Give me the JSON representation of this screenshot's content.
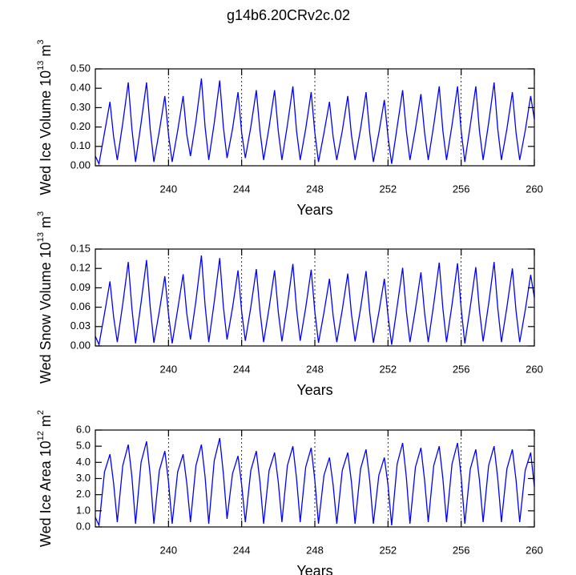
{
  "title": "g14b6.20CRv2c.02",
  "chart_data": [
    {
      "type": "line",
      "xlabel": "Years",
      "ylabel": {
        "text": "Wed Ice Volume 10",
        "exp": "13",
        "unit": "m",
        "unit_exp": "3"
      },
      "xlim": [
        236,
        260
      ],
      "xticks": [
        240,
        244,
        248,
        252,
        256,
        260
      ],
      "ylim": [
        0,
        0.5
      ],
      "yticks": [
        {
          "value": 0,
          "label": "0.00"
        },
        {
          "value": 0.1,
          "label": "0.10"
        },
        {
          "value": 0.2,
          "label": "0.20"
        },
        {
          "value": 0.3,
          "label": "0.30"
        },
        {
          "value": 0.4,
          "label": "0.40"
        },
        {
          "value": 0.5,
          "label": "0.50"
        }
      ],
      "xgrid": "dashed",
      "x": [
        236,
        236.2,
        236.5,
        236.8,
        237,
        237.2,
        237.5,
        237.8,
        238,
        238.2,
        238.5,
        238.8,
        239,
        239.2,
        239.5,
        239.8,
        240,
        240.2,
        240.5,
        240.8,
        241,
        241.2,
        241.5,
        241.8,
        242,
        242.2,
        242.5,
        242.8,
        243,
        243.2,
        243.5,
        243.8,
        244,
        244.2,
        244.5,
        244.8,
        245,
        245.2,
        245.5,
        245.8,
        246,
        246.2,
        246.5,
        246.8,
        247,
        247.2,
        247.5,
        247.8,
        248,
        248.2,
        248.5,
        248.8,
        249,
        249.2,
        249.5,
        249.8,
        250,
        250.2,
        250.5,
        250.8,
        251,
        251.2,
        251.5,
        251.8,
        252,
        252.2,
        252.5,
        252.8,
        253,
        253.2,
        253.5,
        253.8,
        254,
        254.2,
        254.5,
        254.8,
        255,
        255.2,
        255.5,
        255.8,
        256,
        256.2,
        256.5,
        256.8,
        257,
        257.2,
        257.5,
        257.8,
        258,
        258.2,
        258.5,
        258.8,
        259,
        259.2,
        259.5,
        259.8,
        260
      ],
      "series": [
        {
          "color": "#0000ff",
          "values": [
            0.05,
            0.01,
            0.17,
            0.33,
            0.15,
            0.03,
            0.22,
            0.43,
            0.19,
            0.02,
            0.22,
            0.43,
            0.19,
            0.02,
            0.18,
            0.36,
            0.16,
            0.02,
            0.18,
            0.36,
            0.16,
            0.05,
            0.23,
            0.45,
            0.2,
            0.03,
            0.22,
            0.44,
            0.2,
            0.04,
            0.19,
            0.38,
            0.17,
            0.04,
            0.2,
            0.39,
            0.18,
            0.03,
            0.2,
            0.39,
            0.18,
            0.03,
            0.21,
            0.41,
            0.18,
            0.03,
            0.19,
            0.38,
            0.17,
            0.02,
            0.17,
            0.33,
            0.15,
            0.03,
            0.18,
            0.36,
            0.16,
            0.03,
            0.19,
            0.38,
            0.17,
            0.02,
            0.17,
            0.34,
            0.15,
            0.01,
            0.2,
            0.39,
            0.18,
            0.03,
            0.19,
            0.37,
            0.17,
            0.03,
            0.21,
            0.41,
            0.18,
            0.03,
            0.21,
            0.41,
            0.18,
            0.02,
            0.21,
            0.41,
            0.18,
            0.03,
            0.22,
            0.43,
            0.19,
            0.03,
            0.19,
            0.38,
            0.17,
            0.03,
            0.18,
            0.36,
            0.24
          ]
        }
      ]
    },
    {
      "type": "line",
      "xlabel": "Years",
      "ylabel": {
        "text": "Wed Snow Volume 10",
        "exp": "13",
        "unit": "m",
        "unit_exp": "3"
      },
      "xlim": [
        236,
        260
      ],
      "xticks": [
        240,
        244,
        248,
        252,
        256,
        260
      ],
      "ylim": [
        0,
        0.15
      ],
      "yticks": [
        {
          "value": 0,
          "label": "0.00"
        },
        {
          "value": 0.03,
          "label": "0.03"
        },
        {
          "value": 0.06,
          "label": "0.06"
        },
        {
          "value": 0.09,
          "label": "0.09"
        },
        {
          "value": 0.12,
          "label": "0.12"
        },
        {
          "value": 0.15,
          "label": "0.15"
        }
      ],
      "xgrid": "dashed",
      "x": [
        236,
        236.2,
        236.5,
        236.8,
        237,
        237.2,
        237.5,
        237.8,
        238,
        238.2,
        238.5,
        238.8,
        239,
        239.2,
        239.5,
        239.8,
        240,
        240.2,
        240.5,
        240.8,
        241,
        241.2,
        241.5,
        241.8,
        242,
        242.2,
        242.5,
        242.8,
        243,
        243.2,
        243.5,
        243.8,
        244,
        244.2,
        244.5,
        244.8,
        245,
        245.2,
        245.5,
        245.8,
        246,
        246.2,
        246.5,
        246.8,
        247,
        247.2,
        247.5,
        247.8,
        248,
        248.2,
        248.5,
        248.8,
        249,
        249.2,
        249.5,
        249.8,
        250,
        250.2,
        250.5,
        250.8,
        251,
        251.2,
        251.5,
        251.8,
        252,
        252.2,
        252.5,
        252.8,
        253,
        253.2,
        253.5,
        253.8,
        254,
        254.2,
        254.5,
        254.8,
        255,
        255.2,
        255.5,
        255.8,
        256,
        256.2,
        256.5,
        256.8,
        257,
        257.2,
        257.5,
        257.8,
        258,
        258.2,
        258.5,
        258.8,
        259,
        259.2,
        259.5,
        259.8,
        260
      ],
      "series": [
        {
          "color": "#0000ff",
          "values": [
            0.015,
            0.002,
            0.05,
            0.1,
            0.045,
            0.006,
            0.065,
            0.13,
            0.058,
            0.004,
            0.067,
            0.133,
            0.06,
            0.005,
            0.054,
            0.108,
            0.049,
            0.004,
            0.056,
            0.111,
            0.05,
            0.01,
            0.07,
            0.14,
            0.063,
            0.006,
            0.068,
            0.136,
            0.061,
            0.01,
            0.059,
            0.117,
            0.053,
            0.008,
            0.06,
            0.119,
            0.054,
            0.006,
            0.059,
            0.117,
            0.053,
            0.007,
            0.064,
            0.127,
            0.057,
            0.008,
            0.059,
            0.118,
            0.053,
            0.005,
            0.052,
            0.104,
            0.047,
            0.006,
            0.056,
            0.112,
            0.05,
            0.007,
            0.058,
            0.116,
            0.052,
            0.005,
            0.052,
            0.104,
            0.047,
            0.002,
            0.061,
            0.121,
            0.054,
            0.006,
            0.057,
            0.114,
            0.051,
            0.006,
            0.065,
            0.129,
            0.058,
            0.006,
            0.064,
            0.128,
            0.058,
            0.004,
            0.061,
            0.122,
            0.055,
            0.007,
            0.065,
            0.13,
            0.059,
            0.006,
            0.06,
            0.12,
            0.054,
            0.006,
            0.055,
            0.11,
            0.075
          ]
        }
      ]
    },
    {
      "type": "line",
      "xlabel": "Years",
      "ylabel": {
        "text": "Wed Ice Area 10",
        "exp": "12",
        "unit": "m",
        "unit_exp": "2"
      },
      "xlim": [
        236,
        260
      ],
      "xticks": [
        240,
        244,
        248,
        252,
        256,
        260
      ],
      "ylim": [
        0,
        6
      ],
      "yticks": [
        {
          "value": 0,
          "label": "0.0"
        },
        {
          "value": 1,
          "label": "1.0"
        },
        {
          "value": 2,
          "label": "2.0"
        },
        {
          "value": 3,
          "label": "3.0"
        },
        {
          "value": 4,
          "label": "4.0"
        },
        {
          "value": 5,
          "label": "5.0"
        },
        {
          "value": 6,
          "label": "6.0"
        }
      ],
      "xgrid": "dashed",
      "x": [
        236,
        236.2,
        236.5,
        236.8,
        237,
        237.2,
        237.5,
        237.8,
        238,
        238.2,
        238.5,
        238.8,
        239,
        239.2,
        239.5,
        239.8,
        240,
        240.2,
        240.5,
        240.8,
        241,
        241.2,
        241.5,
        241.8,
        242,
        242.2,
        242.5,
        242.8,
        243,
        243.2,
        243.5,
        243.8,
        244,
        244.2,
        244.5,
        244.8,
        245,
        245.2,
        245.5,
        245.8,
        246,
        246.2,
        246.5,
        246.8,
        247,
        247.2,
        247.5,
        247.8,
        248,
        248.2,
        248.5,
        248.8,
        249,
        249.2,
        249.5,
        249.8,
        250,
        250.2,
        250.5,
        250.8,
        251,
        251.2,
        251.5,
        251.8,
        252,
        252.2,
        252.5,
        252.8,
        253,
        253.2,
        253.5,
        253.8,
        254,
        254.2,
        254.5,
        254.8,
        255,
        255.2,
        255.5,
        255.8,
        256,
        256.2,
        256.5,
        256.8,
        257,
        257.2,
        257.5,
        257.8,
        258,
        258.2,
        258.5,
        258.8,
        259,
        259.2,
        259.5,
        259.8,
        260
      ],
      "series": [
        {
          "color": "#0000ff",
          "values": [
            0.6,
            0.1,
            3.4,
            4.5,
            2.7,
            0.3,
            3.8,
            5.1,
            3.1,
            0.2,
            4.0,
            5.3,
            3.2,
            0.2,
            3.5,
            4.7,
            2.8,
            0.2,
            3.4,
            4.5,
            2.7,
            0.3,
            3.8,
            5.1,
            3.1,
            0.2,
            4.1,
            5.5,
            3.3,
            0.5,
            3.3,
            4.4,
            2.6,
            0.3,
            3.5,
            4.7,
            2.8,
            0.2,
            3.5,
            4.6,
            2.8,
            0.3,
            3.8,
            5.0,
            3.0,
            0.3,
            3.7,
            4.9,
            2.9,
            0.2,
            3.2,
            4.3,
            2.6,
            0.2,
            3.5,
            4.6,
            2.8,
            0.2,
            3.6,
            4.8,
            2.9,
            0.2,
            3.2,
            4.3,
            2.6,
            0.1,
            3.9,
            5.2,
            3.1,
            0.2,
            3.7,
            4.9,
            2.9,
            0.3,
            3.8,
            5.0,
            3.0,
            0.3,
            3.9,
            5.2,
            3.1,
            0.2,
            3.6,
            4.8,
            2.9,
            0.3,
            3.8,
            5.0,
            3.0,
            0.3,
            3.6,
            4.8,
            2.9,
            0.3,
            3.5,
            4.6,
            2.5
          ]
        }
      ]
    }
  ]
}
